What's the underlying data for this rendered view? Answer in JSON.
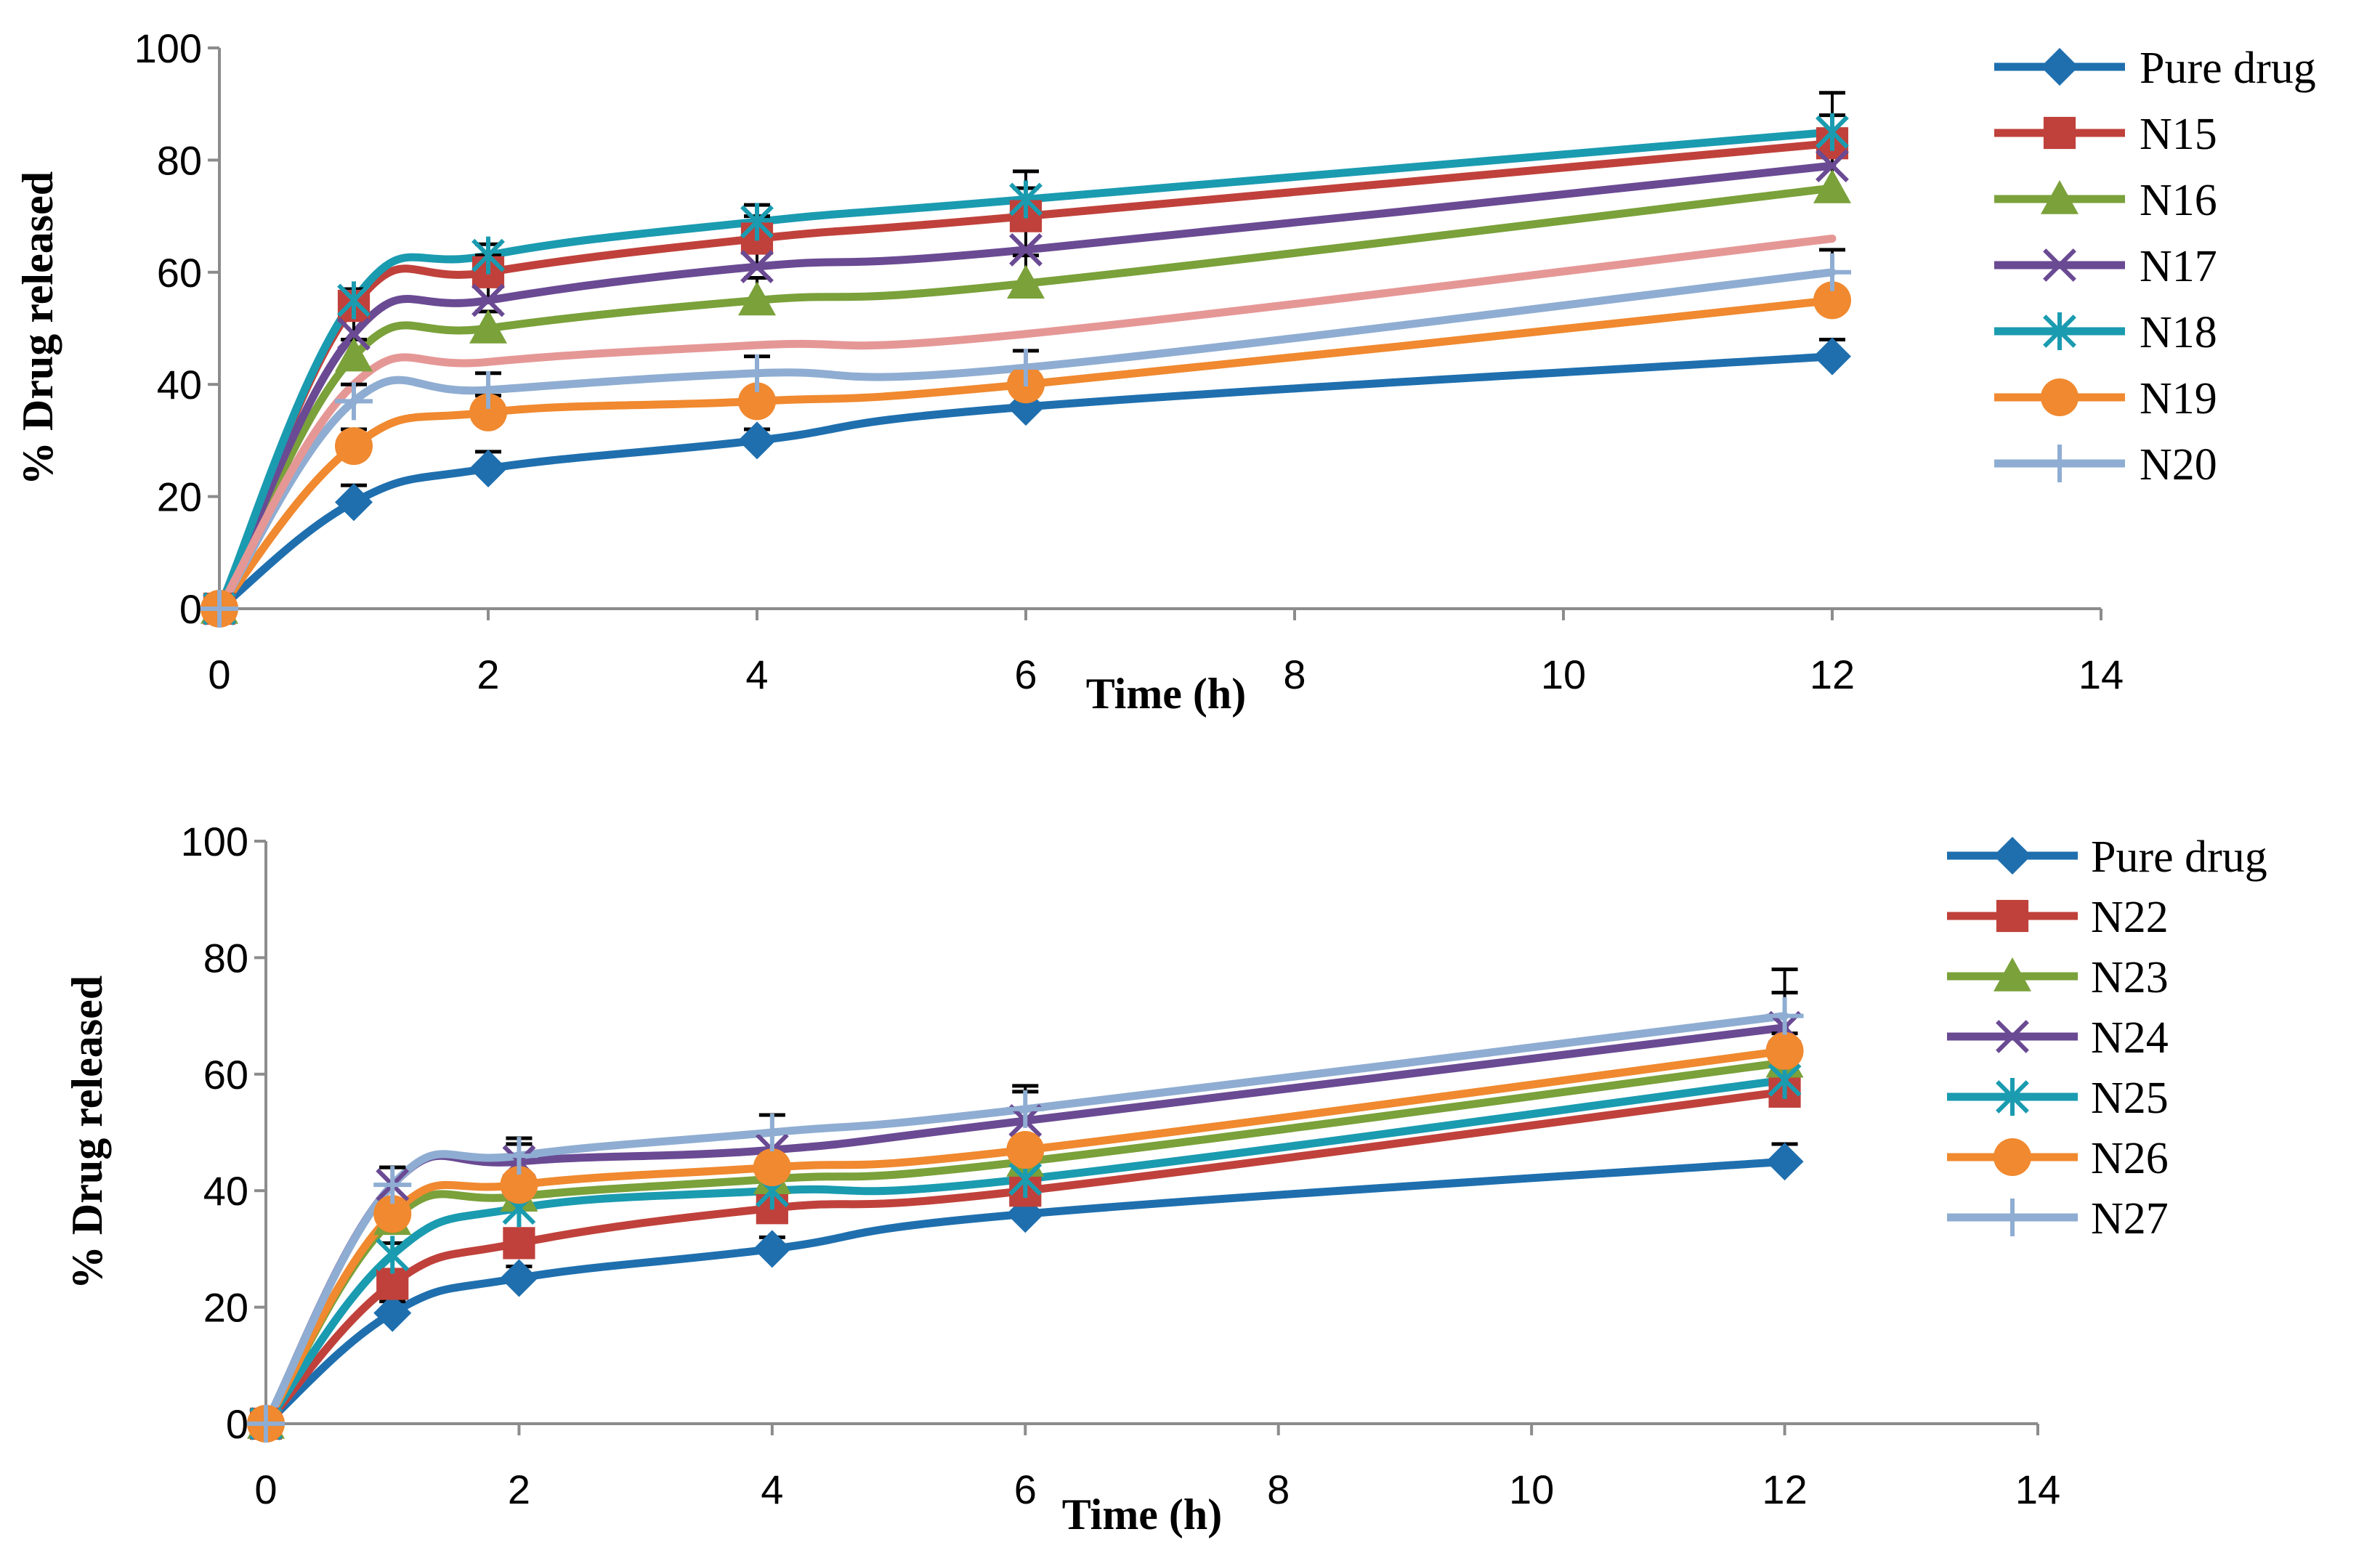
{
  "chart_data": [
    {
      "type": "line",
      "title": "",
      "xlabel": "Time (h)",
      "ylabel": "% Drug released",
      "xlim": [
        0,
        14
      ],
      "ylim": [
        0,
        100
      ],
      "xticks": [
        "0",
        "2",
        "4",
        "6",
        "8",
        "10",
        "12",
        "14"
      ],
      "yticks": [
        "0",
        "20",
        "40",
        "60",
        "80",
        "100"
      ],
      "grid": false,
      "legend_position": "top-right",
      "x": [
        0,
        1,
        2,
        4,
        6,
        12
      ],
      "series": [
        {
          "name": "Pure drug",
          "color": "#1f6fae",
          "marker": "diamond",
          "values": [
            0,
            19,
            25,
            30,
            36,
            45
          ],
          "errors": [
            0,
            3,
            3,
            2,
            2,
            3
          ]
        },
        {
          "name": "N15",
          "color": "#c0413b",
          "marker": "square",
          "values": [
            0,
            54,
            60,
            66,
            70,
            83
          ],
          "errors": [
            0,
            2,
            3,
            4,
            5,
            5
          ]
        },
        {
          "name": "N16",
          "color": "#7aa13a",
          "marker": "triangle",
          "values": [
            0,
            45,
            50,
            55,
            58,
            75
          ],
          "errors": [
            0,
            3,
            3,
            4,
            5,
            6
          ]
        },
        {
          "name": "N17",
          "color": "#6a4a93",
          "marker": "x",
          "values": [
            0,
            49,
            55,
            61,
            64,
            79
          ],
          "errors": [
            0,
            3,
            3,
            4,
            5,
            6
          ]
        },
        {
          "name": "N18",
          "color": "#1a9bb0",
          "marker": "asterisk",
          "values": [
            0,
            55,
            63,
            69,
            73,
            85
          ],
          "errors": [
            0,
            2,
            2,
            3,
            5,
            7
          ]
        },
        {
          "name": "N19",
          "color": "#f0892f",
          "marker": "circle",
          "values": [
            0,
            29,
            35,
            37,
            40,
            55
          ],
          "errors": [
            0,
            3,
            3,
            2,
            3,
            5
          ]
        },
        {
          "name": "N20",
          "color": "#8fadd2",
          "marker": "plus",
          "values": [
            0,
            37,
            39,
            42,
            43,
            60
          ],
          "errors": [
            0,
            3,
            3,
            3,
            3,
            4
          ]
        },
        {
          "name": "",
          "color": "#e59796",
          "marker": "none",
          "values": [
            0,
            40,
            44,
            47,
            49,
            66
          ],
          "errors": [
            0,
            0,
            0,
            0,
            0,
            0
          ]
        }
      ]
    },
    {
      "type": "line",
      "title": "",
      "xlabel": "Time (h)",
      "ylabel": "% Drug released",
      "xlim": [
        0,
        14
      ],
      "ylim": [
        0,
        100
      ],
      "xticks": [
        "0",
        "2",
        "4",
        "6",
        "8",
        "10",
        "12",
        "14"
      ],
      "yticks": [
        "0",
        "20",
        "40",
        "60",
        "80",
        "100"
      ],
      "grid": false,
      "legend_position": "top-right",
      "x": [
        0,
        1,
        2,
        4,
        6,
        12
      ],
      "series": [
        {
          "name": "Pure drug",
          "color": "#1f6fae",
          "marker": "diamond",
          "values": [
            0,
            19,
            25,
            30,
            36,
            45
          ],
          "errors": [
            0,
            2,
            2,
            2,
            2,
            3
          ]
        },
        {
          "name": "N22",
          "color": "#c0413b",
          "marker": "square",
          "values": [
            0,
            24,
            31,
            37,
            40,
            57
          ],
          "errors": [
            0,
            2,
            2,
            2,
            2,
            3
          ]
        },
        {
          "name": "N23",
          "color": "#7aa13a",
          "marker": "triangle",
          "values": [
            0,
            35,
            39,
            42,
            45,
            62
          ],
          "errors": [
            0,
            2,
            2,
            2,
            2,
            3
          ]
        },
        {
          "name": "N24",
          "color": "#6a4a93",
          "marker": "x",
          "values": [
            0,
            41,
            45,
            47,
            52,
            68
          ],
          "errors": [
            0,
            3,
            3,
            3,
            5,
            6
          ]
        },
        {
          "name": "N25",
          "color": "#1a9bb0",
          "marker": "asterisk",
          "values": [
            0,
            29,
            37,
            40,
            42,
            59
          ],
          "errors": [
            0,
            2,
            2,
            2,
            2,
            3
          ]
        },
        {
          "name": "N26",
          "color": "#f0892f",
          "marker": "circle",
          "values": [
            0,
            36,
            41,
            44,
            47,
            64
          ],
          "errors": [
            0,
            2,
            2,
            2,
            2,
            3
          ]
        },
        {
          "name": "N27",
          "color": "#8fadd2",
          "marker": "plus",
          "values": [
            0,
            41,
            46,
            50,
            54,
            70
          ],
          "errors": [
            0,
            3,
            3,
            3,
            4,
            8
          ]
        }
      ]
    }
  ]
}
